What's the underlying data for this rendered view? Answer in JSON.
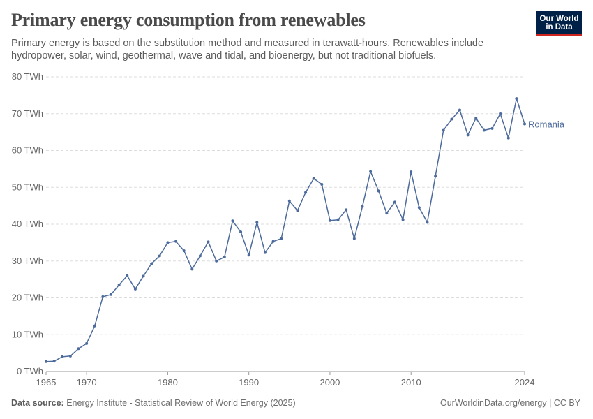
{
  "header": {
    "title": "Primary energy consumption from renewables",
    "subtitle": "Primary energy is based on the substitution method and measured in terawatt-hours. Renewables include hydropower, solar, wind, geothermal, wave and tidal, and bioenergy, but not traditional biofuels."
  },
  "logo": {
    "line1": "Our World",
    "line2": "in Data",
    "background": "#002147",
    "accent": "#ce261e"
  },
  "footer": {
    "source_label": "Data source:",
    "source_text": "Energy Institute - Statistical Review of World Energy (2025)",
    "right_text": "OurWorldinData.org/energy | CC BY"
  },
  "chart_data": {
    "type": "line",
    "title": "Primary energy consumption from renewables",
    "xlabel": "",
    "ylabel": "",
    "xlim": [
      1965,
      2024
    ],
    "ylim": [
      0,
      80
    ],
    "y_ticks": [
      0,
      10,
      20,
      30,
      40,
      50,
      60,
      70,
      80
    ],
    "y_tick_labels": [
      "0 TWh",
      "10 TWh",
      "20 TWh",
      "30 TWh",
      "40 TWh",
      "50 TWh",
      "60 TWh",
      "70 TWh",
      "80 TWh"
    ],
    "x_ticks": [
      1965,
      1970,
      1980,
      1990,
      2000,
      2010,
      2024
    ],
    "x_tick_labels": [
      "1965",
      "1970",
      "1980",
      "1990",
      "2000",
      "2010",
      "2024"
    ],
    "grid": "horizontal dashed",
    "legend": "inline label at line end",
    "series": [
      {
        "name": "Romania",
        "color": "#4c6a9c",
        "x": [
          1965,
          1966,
          1967,
          1968,
          1969,
          1970,
          1971,
          1972,
          1973,
          1974,
          1975,
          1976,
          1977,
          1978,
          1979,
          1980,
          1981,
          1982,
          1983,
          1984,
          1985,
          1986,
          1987,
          1988,
          1989,
          1990,
          1991,
          1992,
          1993,
          1994,
          1995,
          1996,
          1997,
          1998,
          1999,
          2000,
          2001,
          2002,
          2003,
          2004,
          2005,
          2006,
          2007,
          2008,
          2009,
          2010,
          2011,
          2012,
          2013,
          2014,
          2015,
          2016,
          2017,
          2018,
          2019,
          2020,
          2021,
          2022,
          2023,
          2024
        ],
        "y": [
          2.7,
          2.8,
          4.0,
          4.2,
          6.2,
          7.6,
          12.4,
          20.3,
          20.9,
          23.5,
          26.0,
          22.4,
          25.9,
          29.3,
          31.4,
          35.0,
          35.3,
          32.8,
          27.8,
          31.4,
          35.2,
          30.0,
          31.1,
          40.9,
          37.9,
          31.6,
          40.5,
          32.3,
          35.3,
          36.1,
          46.3,
          43.7,
          48.6,
          52.4,
          50.8,
          41.0,
          41.2,
          43.9,
          36.1,
          44.8,
          54.3,
          49.0,
          43.0,
          46.0,
          41.2,
          54.2,
          44.5,
          40.5,
          53.0,
          65.5,
          68.5,
          71.0,
          64.2,
          68.8,
          65.5,
          66.0,
          70.0,
          63.4,
          74.1,
          67.2
        ]
      }
    ]
  }
}
